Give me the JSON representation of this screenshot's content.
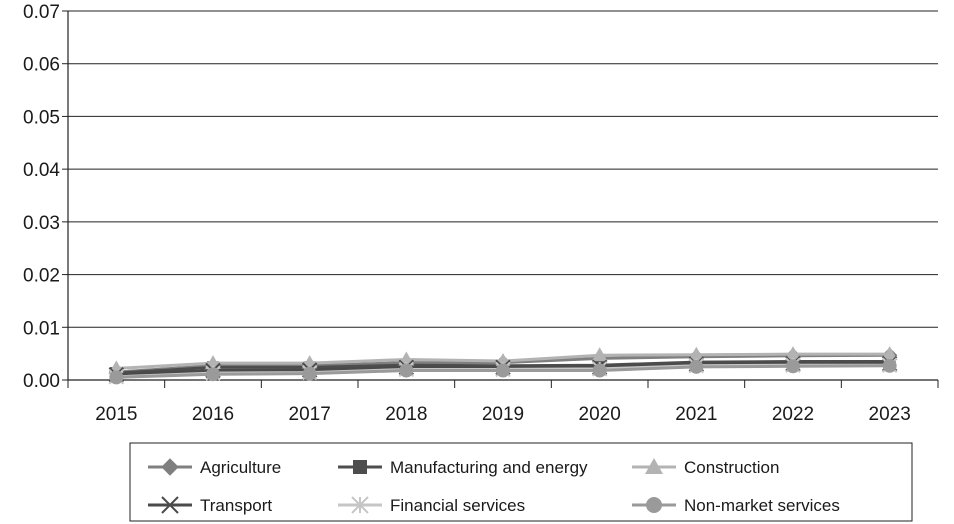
{
  "chart_data": {
    "type": "line",
    "title": "",
    "xlabel": "",
    "ylabel": "",
    "categories": [
      "2015",
      "2016",
      "2017",
      "2018",
      "2019",
      "2020",
      "2021",
      "2022",
      "2023"
    ],
    "ylim": [
      0,
      0.07
    ],
    "y_ticks": [
      "0.00",
      "0.01",
      "0.02",
      "0.03",
      "0.04",
      "0.05",
      "0.06",
      "0.07"
    ],
    "grid": "horizontal",
    "legend_position": "bottom",
    "series": [
      {
        "name": "Agriculture",
        "marker": "diamond",
        "color": "#7f7f7f",
        "values": [
          0.0015,
          0.0027,
          0.0027,
          0.0033,
          0.0033,
          0.0041,
          0.0044,
          0.0046,
          0.0047
        ]
      },
      {
        "name": "Manufacturing and energy",
        "marker": "square",
        "color": "#4d4d4d",
        "values": [
          0.0013,
          0.0024,
          0.0024,
          0.0028,
          0.0027,
          0.0028,
          0.0034,
          0.0035,
          0.0035
        ]
      },
      {
        "name": "Construction",
        "marker": "triangle",
        "color": "#b3b3b3",
        "values": [
          0.0022,
          0.0032,
          0.0032,
          0.0039,
          0.0036,
          0.0047,
          0.0048,
          0.0049,
          0.0049
        ]
      },
      {
        "name": "Transport",
        "marker": "x",
        "color": "#4a4a4a",
        "values": [
          0.001,
          0.0018,
          0.0019,
          0.0024,
          0.0024,
          0.0024,
          0.003,
          0.0031,
          0.0031
        ]
      },
      {
        "name": "Financial services",
        "marker": "asterisk",
        "color": "#c6c6c6",
        "values": [
          0.0006,
          0.0013,
          0.0014,
          0.002,
          0.002,
          0.0021,
          0.0027,
          0.0028,
          0.0028
        ]
      },
      {
        "name": "Non-market services",
        "marker": "circle",
        "color": "#9a9a9a",
        "values": [
          0.0005,
          0.0011,
          0.0012,
          0.0018,
          0.0018,
          0.0018,
          0.0025,
          0.0026,
          0.0027
        ]
      }
    ]
  }
}
